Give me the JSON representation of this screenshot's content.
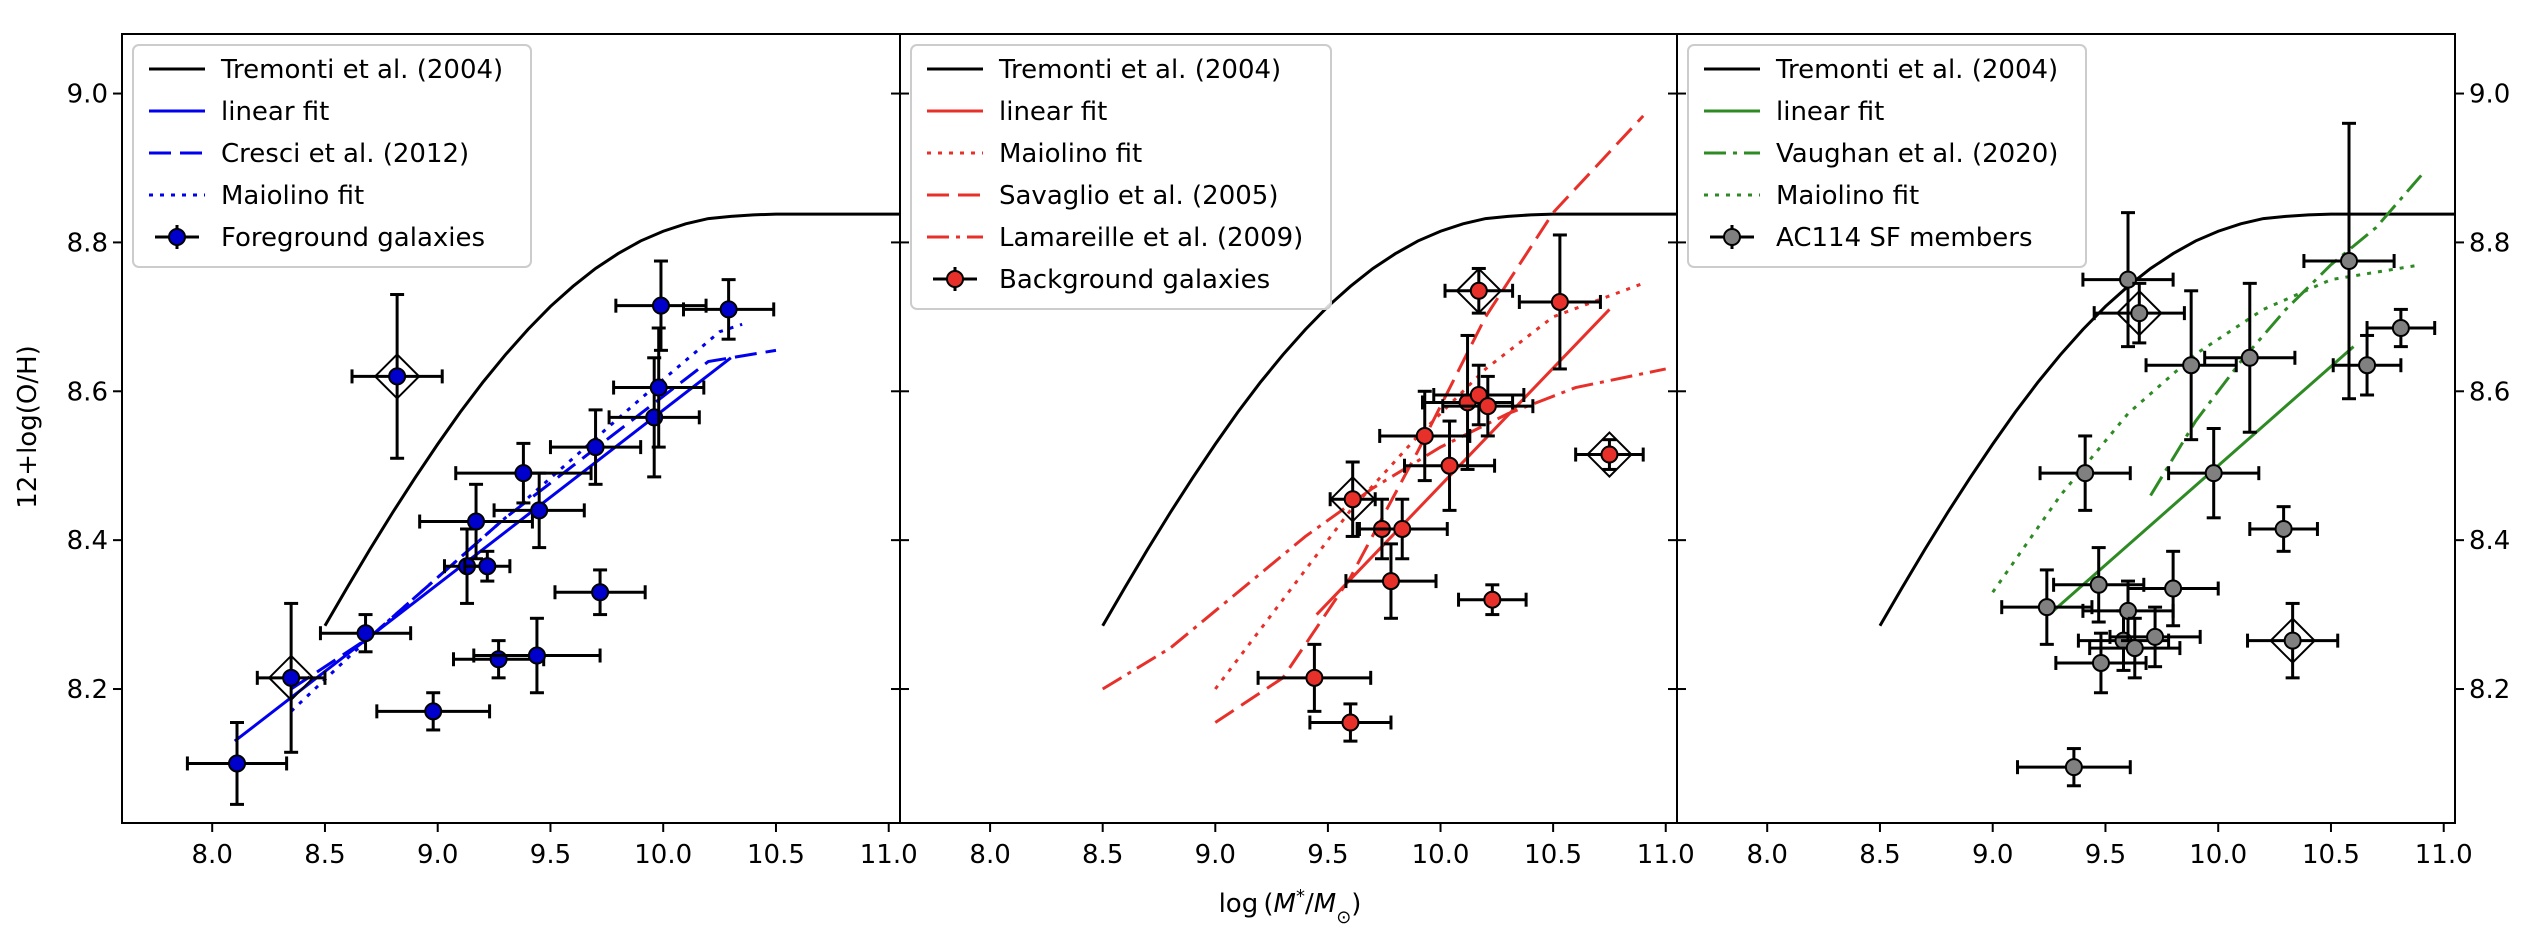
{
  "chart_data": {
    "type": "scatter",
    "ylabel": "12+log(O/H)",
    "xlabel": "log (M*/M⊙)",
    "xlabel_parts": {
      "base": "log (",
      "m": "M",
      "star": "*",
      "sep": "/",
      "msun": "M",
      "sun": "⊙",
      "close": ")"
    },
    "xlim": [
      7.6,
      11.05
    ],
    "ylim": [
      8.02,
      9.08
    ],
    "xticks": [
      "8.0",
      "8.5",
      "9.0",
      "9.5",
      "10.0",
      "10.5",
      "11.0"
    ],
    "yticks": [
      "8.2",
      "8.4",
      "8.6",
      "8.8",
      "9.0"
    ],
    "tremonti_curve": [
      [
        8.5,
        8.285
      ],
      [
        8.6,
        8.337
      ],
      [
        8.7,
        8.388
      ],
      [
        8.8,
        8.437
      ],
      [
        8.9,
        8.484
      ],
      [
        9.0,
        8.529
      ],
      [
        9.1,
        8.572
      ],
      [
        9.2,
        8.612
      ],
      [
        9.3,
        8.649
      ],
      [
        9.4,
        8.683
      ],
      [
        9.5,
        8.714
      ],
      [
        9.6,
        8.741
      ],
      [
        9.7,
        8.765
      ],
      [
        9.8,
        8.785
      ],
      [
        9.9,
        8.802
      ],
      [
        10.0,
        8.815
      ],
      [
        10.1,
        8.825
      ],
      [
        10.2,
        8.832
      ],
      [
        10.3,
        8.835
      ],
      [
        10.4,
        8.837
      ],
      [
        10.5,
        8.838
      ],
      [
        10.6,
        8.838
      ],
      [
        10.7,
        8.838
      ],
      [
        10.8,
        8.838
      ],
      [
        10.9,
        8.838
      ],
      [
        11.0,
        8.838
      ],
      [
        11.05,
        8.838
      ]
    ],
    "panels": [
      {
        "id": "foreground",
        "color": "#0000ee",
        "marker_color": "#0000cc",
        "legend": [
          {
            "label": "Tremonti et al. (2004)",
            "style": "solid",
            "color": "#000000"
          },
          {
            "label": "linear fit",
            "style": "solid",
            "color": "#0000ee"
          },
          {
            "label": "Cresci et al. (2012)",
            "style": "dashed",
            "color": "#0000ee"
          },
          {
            "label": "Maiolino fit",
            "style": "dotted",
            "color": "#0000ee"
          },
          {
            "label": "Foreground galaxies",
            "style": "marker",
            "color": "#0000cc"
          }
        ],
        "lines": [
          {
            "name": "linear fit",
            "style": "solid",
            "points": [
              [
                8.1,
                8.13
              ],
              [
                10.3,
                8.645
              ]
            ]
          },
          {
            "name": "Cresci et al. (2012)",
            "style": "dashed",
            "points": [
              [
                8.35,
                8.2
              ],
              [
                8.7,
                8.27
              ],
              [
                9.0,
                8.35
              ],
              [
                9.3,
                8.43
              ],
              [
                9.6,
                8.5
              ],
              [
                9.9,
                8.57
              ],
              [
                10.2,
                8.64
              ],
              [
                10.5,
                8.655
              ]
            ]
          },
          {
            "name": "Maiolino fit",
            "style": "dotted",
            "points": [
              [
                8.35,
                8.17
              ],
              [
                8.7,
                8.27
              ],
              [
                9.0,
                8.35
              ],
              [
                9.3,
                8.43
              ],
              [
                9.6,
                8.51
              ],
              [
                9.9,
                8.59
              ],
              [
                10.25,
                8.68
              ],
              [
                10.35,
                8.69
              ]
            ]
          }
        ],
        "points": [
          {
            "x": 8.11,
            "y": 8.1,
            "xerr": 0.22,
            "yerr": 0.055
          },
          {
            "x": 8.35,
            "y": 8.215,
            "xerr": 0.15,
            "yerr": 0.1,
            "boxed": true
          },
          {
            "x": 8.68,
            "y": 8.275,
            "xerr": 0.2,
            "yerr": 0.025
          },
          {
            "x": 8.82,
            "y": 8.62,
            "xerr": 0.2,
            "yerr": 0.11,
            "boxed": true
          },
          {
            "x": 8.98,
            "y": 8.17,
            "xerr": 0.25,
            "yerr": 0.025
          },
          {
            "x": 9.13,
            "y": 8.365,
            "xerr": 0.1,
            "yerr": 0.05
          },
          {
            "x": 9.17,
            "y": 8.425,
            "xerr": 0.25,
            "yerr": 0.05
          },
          {
            "x": 9.22,
            "y": 8.365,
            "xerr": 0.1,
            "yerr": 0.02
          },
          {
            "x": 9.27,
            "y": 8.24,
            "xerr": 0.2,
            "yerr": 0.025
          },
          {
            "x": 9.38,
            "y": 8.49,
            "xerr": 0.3,
            "yerr": 0.04
          },
          {
            "x": 9.44,
            "y": 8.245,
            "xerr": 0.28,
            "yerr": 0.05
          },
          {
            "x": 9.45,
            "y": 8.44,
            "xerr": 0.2,
            "yerr": 0.05
          },
          {
            "x": 9.7,
            "y": 8.525,
            "xerr": 0.2,
            "yerr": 0.05
          },
          {
            "x": 9.72,
            "y": 8.33,
            "xerr": 0.2,
            "yerr": 0.03
          },
          {
            "x": 9.96,
            "y": 8.565,
            "xerr": 0.2,
            "yerr": 0.08
          },
          {
            "x": 9.98,
            "y": 8.605,
            "xerr": 0.2,
            "yerr": 0.08
          },
          {
            "x": 9.99,
            "y": 8.715,
            "xerr": 0.2,
            "yerr": 0.06
          },
          {
            "x": 10.29,
            "y": 8.71,
            "xerr": 0.2,
            "yerr": 0.04
          }
        ]
      },
      {
        "id": "background",
        "color": "#e8302a",
        "marker_color": "#e8302a",
        "legend": [
          {
            "label": "Tremonti et al. (2004)",
            "style": "solid",
            "color": "#000000"
          },
          {
            "label": "linear fit",
            "style": "solid",
            "color": "#e8302a"
          },
          {
            "label": "Maiolino fit",
            "style": "dotted",
            "color": "#e8302a"
          },
          {
            "label": "Savaglio et al. (2005)",
            "style": "dashed",
            "color": "#e8302a"
          },
          {
            "label": "Lamareille et al. (2009)",
            "style": "dashdot",
            "color": "#e8302a"
          },
          {
            "label": "Background galaxies",
            "style": "marker",
            "color": "#e8302a"
          }
        ],
        "lines": [
          {
            "name": "linear fit",
            "style": "solid",
            "points": [
              [
                9.45,
                8.3
              ],
              [
                10.75,
                8.71
              ]
            ]
          },
          {
            "name": "Maiolino fit",
            "style": "dotted",
            "points": [
              [
                9.0,
                8.2
              ],
              [
                9.3,
                8.32
              ],
              [
                9.6,
                8.44
              ],
              [
                9.9,
                8.54
              ],
              [
                10.2,
                8.63
              ],
              [
                10.5,
                8.7
              ],
              [
                10.9,
                8.745
              ]
            ]
          },
          {
            "name": "Savaglio et al. (2005)",
            "style": "dashed",
            "points": [
              [
                9.0,
                8.155
              ],
              [
                9.3,
                8.215
              ],
              [
                9.6,
                8.35
              ],
              [
                9.9,
                8.52
              ],
              [
                10.2,
                8.7
              ],
              [
                10.5,
                8.84
              ],
              [
                10.9,
                8.97
              ]
            ]
          },
          {
            "name": "Lamareille et al. (2009)",
            "style": "dashdot",
            "points": [
              [
                8.5,
                8.2
              ],
              [
                8.8,
                8.255
              ],
              [
                9.1,
                8.33
              ],
              [
                9.4,
                8.405
              ],
              [
                9.7,
                8.47
              ],
              [
                10.0,
                8.525
              ],
              [
                10.3,
                8.57
              ],
              [
                10.6,
                8.605
              ],
              [
                11.0,
                8.63
              ]
            ]
          }
        ],
        "points": [
          {
            "x": 9.44,
            "y": 8.215,
            "xerr": 0.25,
            "yerr": 0.045
          },
          {
            "x": 9.6,
            "y": 8.155,
            "xerr": 0.18,
            "yerr": 0.025
          },
          {
            "x": 9.61,
            "y": 8.455,
            "xerr": 0.1,
            "yerr": 0.05,
            "boxed": true
          },
          {
            "x": 9.74,
            "y": 8.415,
            "xerr": 0.1,
            "yerr": 0.04
          },
          {
            "x": 9.78,
            "y": 8.345,
            "xerr": 0.2,
            "yerr": 0.05
          },
          {
            "x": 9.83,
            "y": 8.415,
            "xerr": 0.2,
            "yerr": 0.04
          },
          {
            "x": 9.93,
            "y": 8.54,
            "xerr": 0.2,
            "yerr": 0.06
          },
          {
            "x": 10.04,
            "y": 8.5,
            "xerr": 0.2,
            "yerr": 0.06
          },
          {
            "x": 10.12,
            "y": 8.585,
            "xerr": 0.2,
            "yerr": 0.09
          },
          {
            "x": 10.17,
            "y": 8.735,
            "xerr": 0.15,
            "yerr": 0.03,
            "boxed": true
          },
          {
            "x": 10.17,
            "y": 8.595,
            "xerr": 0.2,
            "yerr": 0.04
          },
          {
            "x": 10.21,
            "y": 8.58,
            "xerr": 0.2,
            "yerr": 0.04
          },
          {
            "x": 10.23,
            "y": 8.32,
            "xerr": 0.15,
            "yerr": 0.02
          },
          {
            "x": 10.53,
            "y": 8.72,
            "xerr": 0.18,
            "yerr": 0.09
          },
          {
            "x": 10.75,
            "y": 8.515,
            "xerr": 0.15,
            "yerr": 0.02,
            "boxed": true
          }
        ]
      },
      {
        "id": "ac114",
        "color": "#2e8b24",
        "marker_color": "#808080",
        "legend": [
          {
            "label": "Tremonti et al. (2004)",
            "style": "solid",
            "color": "#000000"
          },
          {
            "label": "linear fit",
            "style": "solid",
            "color": "#2e8b24"
          },
          {
            "label": "Vaughan et al. (2020)",
            "style": "dashdot",
            "color": "#2e8b24"
          },
          {
            "label": "Maiolino fit",
            "style": "dotted",
            "color": "#2e8b24"
          },
          {
            "label": "AC114 SF members",
            "style": "marker",
            "color": "#808080"
          }
        ],
        "lines": [
          {
            "name": "linear fit",
            "style": "solid",
            "points": [
              [
                9.25,
                8.3
              ],
              [
                10.6,
                8.66
              ]
            ]
          },
          {
            "name": "Vaughan et al. (2020)",
            "style": "dashdot",
            "points": [
              [
                9.7,
                8.46
              ],
              [
                9.9,
                8.56
              ],
              [
                10.1,
                8.64
              ],
              [
                10.3,
                8.71
              ],
              [
                10.5,
                8.77
              ],
              [
                10.7,
                8.82
              ],
              [
                10.9,
                8.89
              ]
            ]
          },
          {
            "name": "Maiolino fit",
            "style": "dotted",
            "points": [
              [
                9.0,
                8.33
              ],
              [
                9.3,
                8.46
              ],
              [
                9.6,
                8.57
              ],
              [
                9.9,
                8.65
              ],
              [
                10.2,
                8.71
              ],
              [
                10.5,
                8.75
              ],
              [
                10.9,
                8.77
              ]
            ]
          }
        ],
        "points": [
          {
            "x": 9.24,
            "y": 8.31,
            "xerr": 0.2,
            "yerr": 0.05
          },
          {
            "x": 9.36,
            "y": 8.095,
            "xerr": 0.25,
            "yerr": 0.025
          },
          {
            "x": 9.41,
            "y": 8.49,
            "xerr": 0.2,
            "yerr": 0.05
          },
          {
            "x": 9.47,
            "y": 8.34,
            "xerr": 0.2,
            "yerr": 0.05
          },
          {
            "x": 9.48,
            "y": 8.235,
            "xerr": 0.2,
            "yerr": 0.04
          },
          {
            "x": 9.58,
            "y": 8.265,
            "xerr": 0.2,
            "yerr": 0.04
          },
          {
            "x": 9.6,
            "y": 8.305,
            "xerr": 0.2,
            "yerr": 0.04
          },
          {
            "x": 9.6,
            "y": 8.75,
            "xerr": 0.2,
            "yerr": 0.09
          },
          {
            "x": 9.63,
            "y": 8.255,
            "xerr": 0.2,
            "yerr": 0.04
          },
          {
            "x": 9.65,
            "y": 8.705,
            "xerr": 0.2,
            "yerr": 0.04,
            "boxed": true
          },
          {
            "x": 9.72,
            "y": 8.27,
            "xerr": 0.2,
            "yerr": 0.04
          },
          {
            "x": 9.8,
            "y": 8.335,
            "xerr": 0.2,
            "yerr": 0.05
          },
          {
            "x": 9.88,
            "y": 8.635,
            "xerr": 0.2,
            "yerr": 0.1
          },
          {
            "x": 9.98,
            "y": 8.49,
            "xerr": 0.2,
            "yerr": 0.06
          },
          {
            "x": 10.14,
            "y": 8.645,
            "xerr": 0.2,
            "yerr": 0.1
          },
          {
            "x": 10.29,
            "y": 8.415,
            "xerr": 0.15,
            "yerr": 0.03
          },
          {
            "x": 10.33,
            "y": 8.265,
            "xerr": 0.2,
            "yerr": 0.05,
            "boxed": true
          },
          {
            "x": 10.58,
            "y": 8.775,
            "xerr": 0.2,
            "yerr": 0.185
          },
          {
            "x": 10.66,
            "y": 8.635,
            "xerr": 0.15,
            "yerr": 0.04
          },
          {
            "x": 10.81,
            "y": 8.685,
            "xerr": 0.15,
            "yerr": 0.025
          }
        ]
      }
    ]
  }
}
